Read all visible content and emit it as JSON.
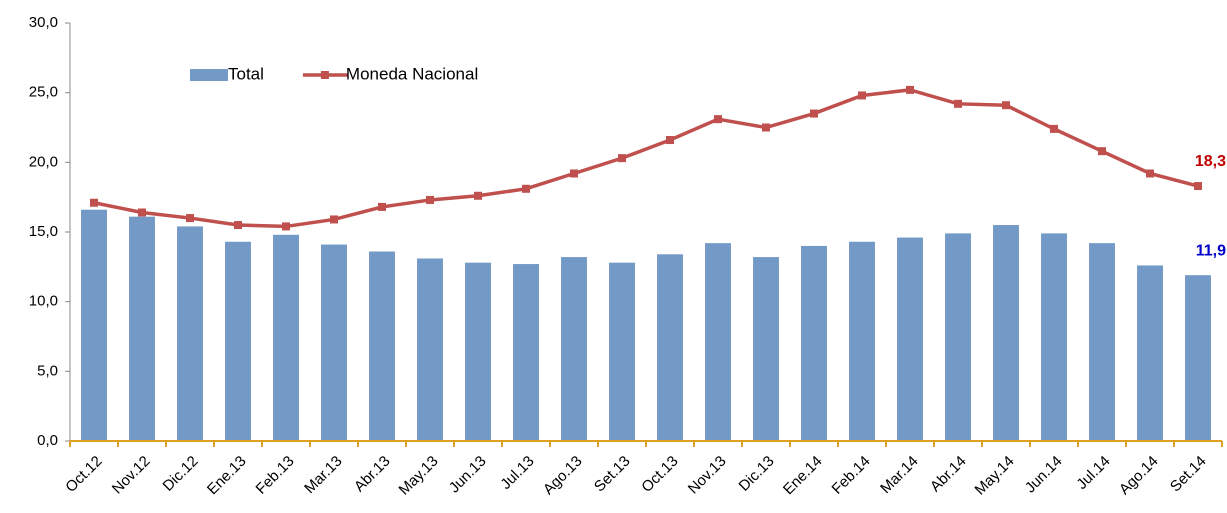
{
  "chart_data": {
    "type": "bar-line",
    "categories": [
      "Oct.12",
      "Nov.12",
      "Dic.12",
      "Ene.13",
      "Feb.13",
      "Mar.13",
      "Abr.13",
      "May.13",
      "Jun.13",
      "Jul.13",
      "Ago.13",
      "Set.13",
      "Oct.13",
      "Nov.13",
      "Dic.13",
      "Ene.14",
      "Feb.14",
      "Mar.14",
      "Abr.14",
      "May.14",
      "Jun.14",
      "Jul.14",
      "Ago.14",
      "Set.14"
    ],
    "series": [
      {
        "name": "Total",
        "type": "bar",
        "color": "#7399c6",
        "label_color": "#0000cc",
        "values": [
          16.6,
          16.1,
          15.4,
          14.3,
          14.8,
          14.1,
          13.6,
          13.1,
          12.8,
          12.7,
          13.2,
          12.8,
          13.4,
          14.2,
          13.2,
          14.0,
          14.3,
          14.6,
          14.9,
          15.5,
          14.9,
          14.2,
          12.6,
          11.9
        ],
        "value_labels": [
          null,
          null,
          null,
          null,
          null,
          null,
          null,
          null,
          null,
          null,
          null,
          null,
          null,
          null,
          null,
          null,
          null,
          null,
          null,
          null,
          null,
          null,
          null,
          "11,9"
        ]
      },
      {
        "name": "Moneda Nacional",
        "type": "line",
        "color": "#c0504d",
        "label_color": "#c00000",
        "values": [
          17.1,
          16.4,
          16.0,
          15.5,
          15.4,
          15.9,
          16.8,
          17.3,
          17.6,
          18.1,
          19.2,
          20.3,
          21.6,
          23.1,
          22.5,
          23.5,
          24.8,
          25.2,
          24.2,
          24.1,
          22.4,
          20.8,
          19.2,
          18.3
        ],
        "value_labels": [
          null,
          null,
          null,
          null,
          null,
          null,
          null,
          null,
          null,
          null,
          null,
          null,
          null,
          null,
          null,
          null,
          null,
          null,
          null,
          null,
          null,
          null,
          null,
          "18,3"
        ]
      }
    ],
    "ylim": [
      0,
      30
    ],
    "yticks": [
      {
        "value": 0,
        "label": "0,0"
      },
      {
        "value": 5,
        "label": "5,0"
      },
      {
        "value": 10,
        "label": "10,0"
      },
      {
        "value": 15,
        "label": "15,0"
      },
      {
        "value": 20,
        "label": "20,0"
      },
      {
        "value": 25,
        "label": "25,0"
      },
      {
        "value": 30,
        "label": "30,0"
      }
    ],
    "grid": false,
    "legend": "top-left",
    "axis_color": "#e0a020"
  }
}
